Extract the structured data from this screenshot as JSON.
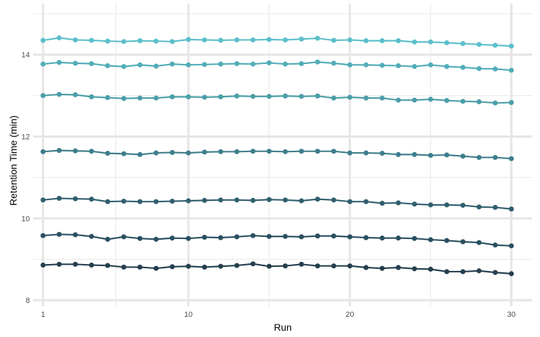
{
  "chart_data": {
    "type": "line",
    "title": "",
    "xlabel": "Run",
    "ylabel": "Retention Time (min)",
    "x": [
      1,
      2,
      3,
      4,
      5,
      6,
      7,
      8,
      9,
      10,
      11,
      12,
      13,
      14,
      15,
      16,
      17,
      18,
      19,
      20,
      21,
      22,
      23,
      24,
      25,
      26,
      27,
      28,
      29,
      30
    ],
    "xlim": [
      0.4,
      31.3
    ],
    "ylim": [
      7.85,
      15.25
    ],
    "x_ticks": [
      1,
      10,
      20,
      30
    ],
    "x_tick_labels": [
      "1",
      "10",
      "20",
      "30"
    ],
    "y_ticks": [
      8,
      10,
      12,
      14
    ],
    "y_tick_labels": [
      "8",
      "10",
      "12",
      "14"
    ],
    "grid": true,
    "legend": "none",
    "series": [
      {
        "color": "#5bbfcb",
        "values": [
          14.35,
          14.41,
          14.36,
          14.35,
          14.33,
          14.32,
          14.34,
          14.33,
          14.32,
          14.37,
          14.36,
          14.35,
          14.36,
          14.36,
          14.37,
          14.36,
          14.38,
          14.4,
          14.35,
          14.36,
          14.34,
          14.34,
          14.34,
          14.31,
          14.31,
          14.29,
          14.27,
          14.25,
          14.23,
          14.21
        ]
      },
      {
        "color": "#51adb8",
        "values": [
          13.77,
          13.81,
          13.79,
          13.78,
          13.73,
          13.71,
          13.75,
          13.72,
          13.77,
          13.75,
          13.76,
          13.77,
          13.78,
          13.77,
          13.8,
          13.77,
          13.78,
          13.82,
          13.79,
          13.75,
          13.75,
          13.74,
          13.73,
          13.71,
          13.75,
          13.71,
          13.69,
          13.66,
          13.65,
          13.62
        ]
      },
      {
        "color": "#4b9ea8",
        "values": [
          13.0,
          13.03,
          13.02,
          12.97,
          12.95,
          12.93,
          12.94,
          12.94,
          12.97,
          12.97,
          12.96,
          12.97,
          12.99,
          12.98,
          12.98,
          12.99,
          12.98,
          12.99,
          12.94,
          12.96,
          12.94,
          12.94,
          12.89,
          12.89,
          12.91,
          12.88,
          12.86,
          12.85,
          12.82,
          12.83
        ]
      },
      {
        "color": "#3e7e8c",
        "values": [
          11.63,
          11.66,
          11.65,
          11.64,
          11.59,
          11.58,
          11.56,
          11.6,
          11.61,
          11.6,
          11.62,
          11.63,
          11.63,
          11.64,
          11.64,
          11.63,
          11.64,
          11.64,
          11.64,
          11.6,
          11.6,
          11.59,
          11.56,
          11.56,
          11.54,
          11.55,
          11.52,
          11.49,
          11.49,
          11.46
        ]
      },
      {
        "color": "#315f6e",
        "values": [
          10.45,
          10.49,
          10.48,
          10.47,
          10.41,
          10.42,
          10.41,
          10.41,
          10.42,
          10.43,
          10.44,
          10.45,
          10.45,
          10.44,
          10.46,
          10.45,
          10.43,
          10.47,
          10.45,
          10.41,
          10.41,
          10.37,
          10.38,
          10.35,
          10.33,
          10.33,
          10.32,
          10.28,
          10.27,
          10.23
        ]
      },
      {
        "color": "#2a5060",
        "values": [
          9.58,
          9.61,
          9.6,
          9.56,
          9.49,
          9.55,
          9.51,
          9.49,
          9.52,
          9.51,
          9.54,
          9.53,
          9.55,
          9.58,
          9.56,
          9.56,
          9.55,
          9.57,
          9.57,
          9.55,
          9.53,
          9.52,
          9.52,
          9.51,
          9.48,
          9.46,
          9.43,
          9.41,
          9.35,
          9.33
        ]
      },
      {
        "color": "#253f4f",
        "values": [
          8.86,
          8.88,
          8.88,
          8.86,
          8.85,
          8.81,
          8.81,
          8.78,
          8.82,
          8.83,
          8.81,
          8.83,
          8.85,
          8.89,
          8.83,
          8.84,
          8.88,
          8.84,
          8.84,
          8.84,
          8.8,
          8.78,
          8.8,
          8.77,
          8.76,
          8.7,
          8.7,
          8.72,
          8.68,
          8.65
        ]
      }
    ]
  }
}
